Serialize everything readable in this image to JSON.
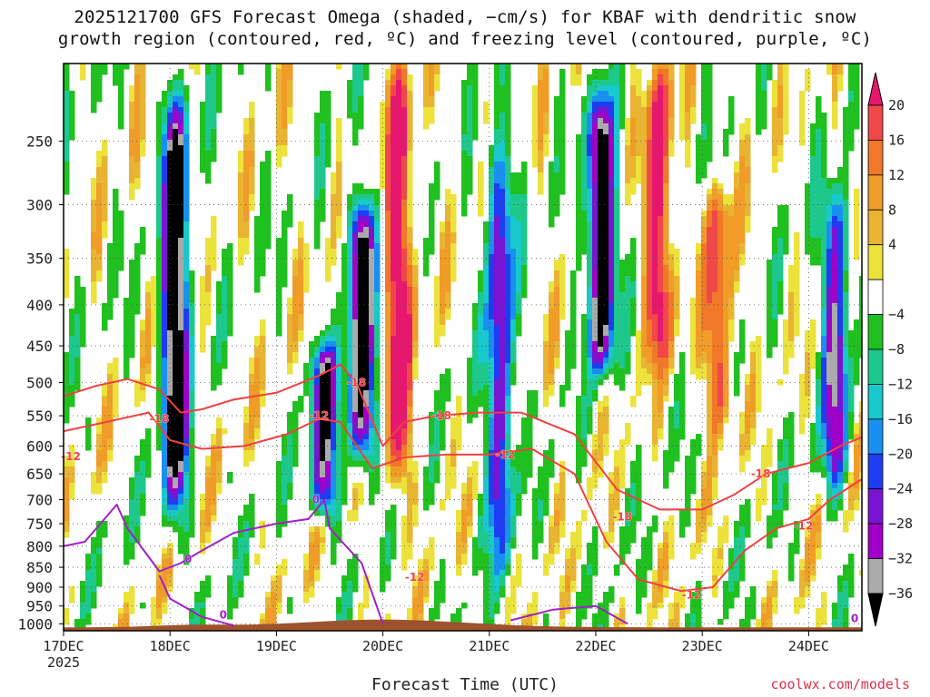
{
  "chart_data": {
    "type": "heatmap",
    "title_line1": "2025121700 GFS Forecast Omega (shaded, −cm/s) for KBAF with dendritic snow",
    "title_line2": "growth region (contoured, red, ºC) and freezing level (contoured, purple, ºC)",
    "xlabel": "Forecast Time (UTC)",
    "ylabel": "",
    "x_ticks": [
      {
        "label": "17DEC",
        "sub": "2025"
      },
      {
        "label": "18DEC",
        "sub": ""
      },
      {
        "label": "19DEC",
        "sub": ""
      },
      {
        "label": "20DEC",
        "sub": ""
      },
      {
        "label": "21DEC",
        "sub": ""
      },
      {
        "label": "22DEC",
        "sub": ""
      },
      {
        "label": "23DEC",
        "sub": ""
      },
      {
        "label": "24DEC",
        "sub": ""
      }
    ],
    "xlim_days": [
      0,
      7.5
    ],
    "y_ticks": [
      250,
      300,
      350,
      400,
      450,
      500,
      550,
      600,
      650,
      700,
      750,
      800,
      850,
      900,
      950,
      1000
    ],
    "ylim_hpa": [
      1020,
      200
    ],
    "y_scale": "log",
    "grid": true,
    "colorbar": {
      "labels": [
        "20",
        "16",
        "12",
        "8",
        "4",
        "−4",
        "−8",
        "−12",
        "−16",
        "−20",
        "−24",
        "−28",
        "−32",
        "−36"
      ],
      "colors": [
        "#e6186e",
        "#f04848",
        "#f07828",
        "#f09c28",
        "#e8b432",
        "#ece23c",
        "#ffffff",
        "#20c020",
        "#1ec88c",
        "#18c8cc",
        "#1890f0",
        "#1e3cf0",
        "#7814d2",
        "#a000c8",
        "#aaaaaa",
        "#000000"
      ]
    },
    "colors": {
      "surface": "#a0522d",
      "dgz_contour": "#f04040",
      "freezing_contour": "#a020c8"
    },
    "contour_labels": [
      {
        "text": "-18",
        "day": 0.9,
        "p": 555,
        "kind": "dgz"
      },
      {
        "text": "-12",
        "day": 0.0,
        "p": 618,
        "kind": "dgz"
      },
      {
        "text": "-18",
        "day": 2.75,
        "p": 500,
        "kind": "dgz"
      },
      {
        "text": "-12",
        "day": 2.4,
        "p": 550,
        "kind": "dgz"
      },
      {
        "text": "-18",
        "day": 3.55,
        "p": 550,
        "kind": "dgz"
      },
      {
        "text": "-12",
        "day": 4.15,
        "p": 615,
        "kind": "dgz"
      },
      {
        "text": "-18",
        "day": 5.25,
        "p": 735,
        "kind": "dgz"
      },
      {
        "text": "-12",
        "day": 5.9,
        "p": 920,
        "kind": "dgz"
      },
      {
        "text": "-18",
        "day": 6.55,
        "p": 650,
        "kind": "dgz"
      },
      {
        "text": "-12",
        "day": 6.95,
        "p": 755,
        "kind": "dgz"
      },
      {
        "text": "-12",
        "day": 3.3,
        "p": 875,
        "kind": "dgz"
      },
      {
        "text": "0",
        "day": 1.17,
        "p": 830,
        "kind": "frz"
      },
      {
        "text": "0",
        "day": 1.5,
        "p": 975,
        "kind": "frz"
      },
      {
        "text": "0",
        "day": 2.37,
        "p": 700,
        "kind": "frz"
      },
      {
        "text": "0",
        "day": 7.48,
        "p": 985,
        "kind": "frz"
      }
    ],
    "omega_features": [
      {
        "day": 1.05,
        "p_top": 230,
        "p_bot": 700,
        "value": -36
      },
      {
        "day": 2.45,
        "p_top": 470,
        "p_bot": 700,
        "value": -28
      },
      {
        "day": 2.8,
        "p_top": 310,
        "p_bot": 600,
        "value": -36
      },
      {
        "day": 3.15,
        "p_top": 210,
        "p_bot": 650,
        "value": 20
      },
      {
        "day": 4.1,
        "p_top": 260,
        "p_bot": 800,
        "value": -24
      },
      {
        "day": 5.05,
        "p_top": 230,
        "p_bot": 460,
        "value": -36
      },
      {
        "day": 5.6,
        "p_top": 210,
        "p_bot": 450,
        "value": 20
      },
      {
        "day": 6.15,
        "p_top": 300,
        "p_bot": 550,
        "value": 16
      },
      {
        "day": 7.25,
        "p_top": 300,
        "p_bot": 650,
        "value": -24
      }
    ]
  },
  "credit": "coolwx.com/models"
}
